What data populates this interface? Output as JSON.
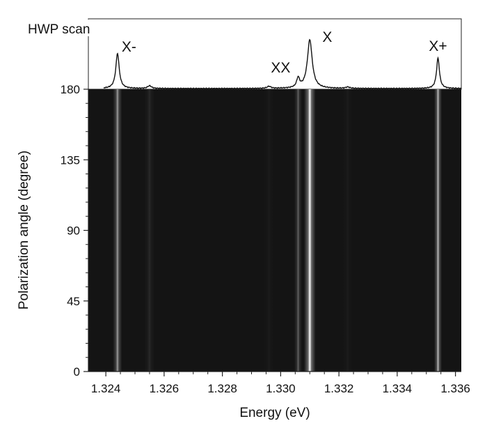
{
  "chart_data": {
    "type": "heatmap",
    "panel_title": "HWP scan",
    "xlabel": "Energy (eV)",
    "ylabel": "Polarization angle (degree)",
    "xlim": [
      1.3234,
      1.3362
    ],
    "ylim": [
      0,
      180
    ],
    "x_ticks": [
      "1.324",
      "1.326",
      "1.328",
      "1.330",
      "1.332",
      "1.334",
      "1.336"
    ],
    "x_tick_values": [
      1.324,
      1.326,
      1.328,
      1.33,
      1.332,
      1.334,
      1.336
    ],
    "y_ticks": [
      "0",
      "45",
      "90",
      "135",
      "180"
    ],
    "y_tick_values": [
      0,
      45,
      90,
      135,
      180
    ],
    "colormap": "grayscale",
    "background_color": "#141414",
    "spectrum": {
      "peaks": [
        {
          "energy": 1.3244,
          "height": 0.52,
          "width": 7e-05
        },
        {
          "energy": 1.3255,
          "height": 0.04,
          "width": 8e-05
        },
        {
          "energy": 1.3296,
          "height": 0.03,
          "width": 8e-05
        },
        {
          "energy": 1.3306,
          "height": 0.14,
          "width": 6e-05
        },
        {
          "energy": 1.331,
          "height": 0.72,
          "width": 0.0001
        },
        {
          "energy": 1.3323,
          "height": 0.02,
          "width": 8e-05
        },
        {
          "energy": 1.3354,
          "height": 0.45,
          "width": 6e-05
        }
      ]
    },
    "lines": [
      {
        "energy": 1.3244,
        "intensity": 0.75,
        "width": 7e-05
      },
      {
        "energy": 1.3255,
        "intensity": 0.25,
        "width": 8e-05
      },
      {
        "energy": 1.3296,
        "intensity": 0.12,
        "width": 8e-05
      },
      {
        "energy": 1.3306,
        "intensity": 0.55,
        "width": 6e-05
      },
      {
        "energy": 1.331,
        "intensity": 1.0,
        "width": 9e-05
      },
      {
        "energy": 1.3323,
        "intensity": 0.12,
        "width": 8e-05
      },
      {
        "energy": 1.3354,
        "intensity": 0.85,
        "width": 6e-05
      }
    ],
    "annotations": [
      {
        "text": "X-",
        "energy": 1.3244
      },
      {
        "text": "XX",
        "energy": 1.33
      },
      {
        "text": "X",
        "energy": 1.3316
      },
      {
        "text": "X+",
        "energy": 1.3354
      }
    ]
  }
}
